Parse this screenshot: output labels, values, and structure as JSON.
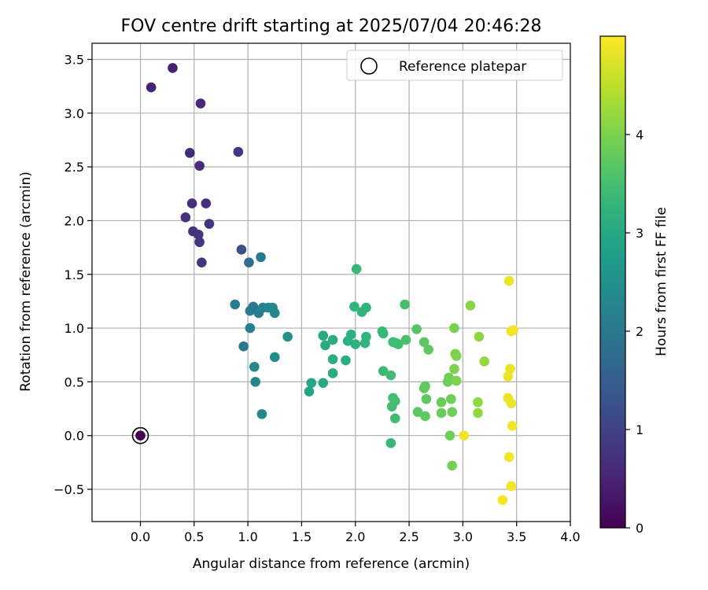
{
  "chart_data": {
    "type": "scatter",
    "title": "FOV centre drift starting at 2025/07/04 20:46:28",
    "xlabel": "Angular distance from reference (arcmin)",
    "ylabel": "Rotation from reference (arcmin)",
    "xlim": [
      -0.45,
      4.0
    ],
    "ylim": [
      -0.8,
      3.65
    ],
    "x_ticks": [
      0.0,
      0.5,
      1.0,
      1.5,
      2.0,
      2.5,
      3.0,
      3.5,
      4.0
    ],
    "x_tick_labels": [
      "0.0",
      "0.5",
      "1.0",
      "1.5",
      "2.0",
      "2.5",
      "3.0",
      "3.5",
      "4.0"
    ],
    "y_ticks": [
      -0.5,
      0.0,
      0.5,
      1.0,
      1.5,
      2.0,
      2.5,
      3.0,
      3.5
    ],
    "y_tick_labels": [
      "−0.5",
      "0.0",
      "0.5",
      "1.0",
      "1.5",
      "2.0",
      "2.5",
      "3.0",
      "3.5"
    ],
    "grid": true,
    "legend": {
      "placement": "top-right",
      "entries": [
        {
          "label": "Reference platepar",
          "marker": "open-circle"
        }
      ]
    },
    "colorbar": {
      "label": "Hours from first FF file",
      "colormap": "viridis",
      "range": [
        0,
        5.0
      ],
      "ticks": [
        0,
        1,
        2,
        3,
        4
      ],
      "tick_labels": [
        "0",
        "1",
        "2",
        "3",
        "4"
      ]
    },
    "reference_point": {
      "x": 0.0,
      "y": 0.0
    },
    "colors": {
      "viridis": [
        "#440154",
        "#482878",
        "#3e4989",
        "#31688e",
        "#26828e",
        "#1f9e89",
        "#35b779",
        "#6ece58",
        "#b5de2b",
        "#fde725"
      ]
    },
    "points": [
      [
        0.0,
        0.0,
        0.0
      ],
      [
        0.3,
        3.42,
        0.45
      ],
      [
        0.1,
        3.24,
        0.48
      ],
      [
        0.56,
        3.09,
        0.55
      ],
      [
        0.46,
        2.63,
        0.6
      ],
      [
        0.91,
        2.64,
        0.78
      ],
      [
        0.55,
        2.51,
        0.62
      ],
      [
        0.48,
        2.16,
        0.65
      ],
      [
        0.61,
        2.16,
        0.68
      ],
      [
        0.42,
        2.03,
        0.7
      ],
      [
        0.64,
        1.97,
        0.72
      ],
      [
        0.49,
        1.9,
        0.72
      ],
      [
        0.54,
        1.87,
        0.75
      ],
      [
        0.55,
        1.8,
        0.78
      ],
      [
        0.57,
        1.61,
        0.8
      ],
      [
        0.94,
        1.73,
        1.2
      ],
      [
        1.01,
        1.61,
        1.8
      ],
      [
        1.12,
        1.66,
        2.0
      ],
      [
        0.88,
        1.22,
        2.1
      ],
      [
        1.05,
        1.2,
        2.0
      ],
      [
        1.02,
        1.16,
        2.05
      ],
      [
        1.1,
        1.14,
        2.15
      ],
      [
        1.14,
        1.19,
        2.2
      ],
      [
        1.19,
        1.19,
        2.3
      ],
      [
        1.23,
        1.19,
        2.35
      ],
      [
        1.25,
        1.14,
        2.35
      ],
      [
        1.02,
        1.0,
        2.2
      ],
      [
        0.96,
        0.83,
        2.05
      ],
      [
        1.06,
        0.64,
        2.35
      ],
      [
        1.07,
        0.5,
        2.3
      ],
      [
        1.25,
        0.73,
        2.45
      ],
      [
        1.13,
        0.2,
        2.3
      ],
      [
        1.37,
        0.92,
        2.5
      ],
      [
        1.57,
        0.41,
        2.9
      ],
      [
        1.59,
        0.49,
        2.95
      ],
      [
        1.7,
        0.93,
        3.05
      ],
      [
        1.72,
        0.84,
        3.05
      ],
      [
        1.7,
        0.49,
        3.0
      ],
      [
        1.79,
        0.89,
        3.1
      ],
      [
        1.79,
        0.71,
        3.1
      ],
      [
        1.79,
        0.58,
        3.05
      ],
      [
        1.91,
        0.7,
        3.1
      ],
      [
        1.93,
        0.88,
        3.15
      ],
      [
        1.96,
        0.94,
        3.15
      ],
      [
        1.99,
        1.2,
        3.25
      ],
      [
        2.01,
        1.55,
        3.35
      ],
      [
        2.0,
        0.85,
        3.2
      ],
      [
        2.06,
        1.15,
        3.25
      ],
      [
        2.1,
        1.19,
        3.25
      ],
      [
        2.1,
        0.92,
        3.25
      ],
      [
        2.09,
        0.86,
        3.25
      ],
      [
        2.25,
        0.97,
        3.4
      ],
      [
        2.26,
        0.95,
        3.35
      ],
      [
        2.26,
        0.6,
        3.4
      ],
      [
        2.33,
        0.56,
        3.45
      ],
      [
        2.33,
        -0.07,
        3.35
      ],
      [
        2.35,
        0.87,
        3.45
      ],
      [
        2.4,
        0.85,
        3.5
      ],
      [
        2.38,
        0.86,
        3.45
      ],
      [
        2.46,
        1.22,
        3.5
      ],
      [
        2.47,
        0.89,
        3.55
      ],
      [
        2.35,
        0.35,
        3.45
      ],
      [
        2.37,
        0.32,
        3.5
      ],
      [
        2.34,
        0.27,
        3.45
      ],
      [
        2.37,
        0.16,
        3.45
      ],
      [
        2.57,
        0.99,
        3.65
      ],
      [
        2.64,
        0.87,
        3.7
      ],
      [
        2.68,
        0.8,
        3.75
      ],
      [
        2.58,
        0.22,
        3.7
      ],
      [
        2.65,
        0.46,
        3.75
      ],
      [
        2.64,
        0.44,
        3.75
      ],
      [
        2.66,
        0.34,
        3.75
      ],
      [
        2.65,
        0.18,
        3.75
      ],
      [
        2.8,
        0.31,
        3.85
      ],
      [
        2.8,
        0.21,
        3.85
      ],
      [
        2.86,
        0.5,
        3.9
      ],
      [
        2.87,
        0.54,
        3.9
      ],
      [
        2.89,
        0.34,
        3.9
      ],
      [
        2.9,
        0.22,
        3.9
      ],
      [
        2.88,
        0.0,
        3.9
      ],
      [
        2.9,
        -0.28,
        3.95
      ],
      [
        2.92,
        1.0,
        4.0
      ],
      [
        2.93,
        0.76,
        4.0
      ],
      [
        2.94,
        0.74,
        4.0
      ],
      [
        2.92,
        0.62,
        4.0
      ],
      [
        2.94,
        0.51,
        4.0
      ],
      [
        3.07,
        1.21,
        4.1
      ],
      [
        3.15,
        0.92,
        4.15
      ],
      [
        3.14,
        0.31,
        4.15
      ],
      [
        3.14,
        0.21,
        4.15
      ],
      [
        3.2,
        0.69,
        4.2
      ],
      [
        3.01,
        0.0,
        4.9
      ],
      [
        3.43,
        1.44,
        4.85
      ],
      [
        3.45,
        0.97,
        4.9
      ],
      [
        3.47,
        0.98,
        4.9
      ],
      [
        3.44,
        0.62,
        4.85
      ],
      [
        3.42,
        0.55,
        4.85
      ],
      [
        3.42,
        0.35,
        4.85
      ],
      [
        3.45,
        0.3,
        4.85
      ],
      [
        3.46,
        0.09,
        4.9
      ],
      [
        3.43,
        -0.2,
        4.9
      ],
      [
        3.45,
        -0.47,
        4.9
      ],
      [
        3.37,
        -0.6,
        4.95
      ]
    ]
  }
}
